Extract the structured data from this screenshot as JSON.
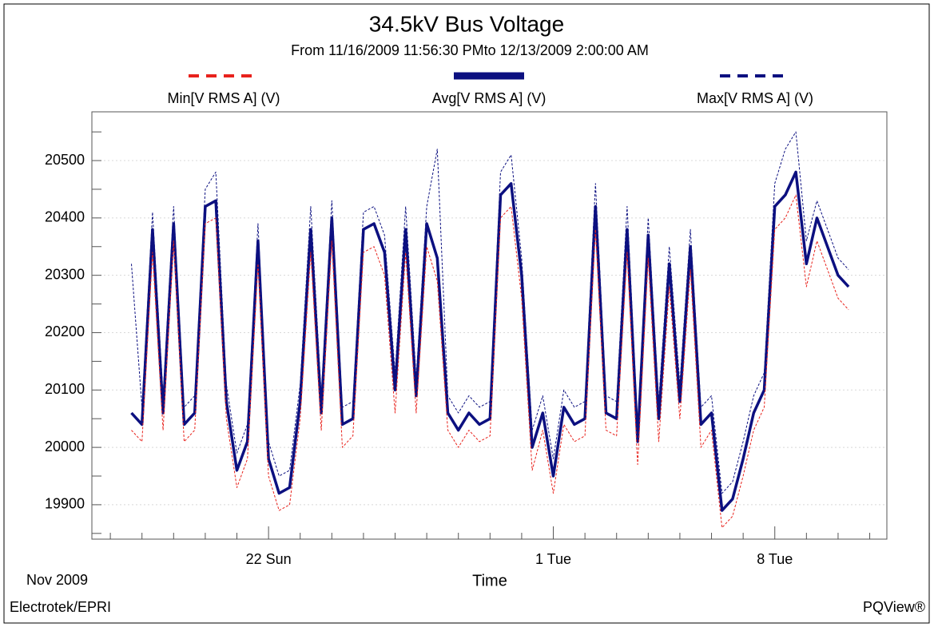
{
  "chart_data": {
    "type": "line",
    "title": "34.5kV Bus Voltage",
    "subtitle": "From 11/16/2009 11:56:30 PMto 12/13/2009 2:00:00 AM",
    "xlabel": "Time",
    "x_period": "Nov 2009",
    "footer_left": "Electrotek/EPRI",
    "footer_right": "PQView®",
    "grid": true,
    "xlim": [
      "2009-11-16T10:00",
      "2009-12-11T13:00"
    ],
    "ylim": [
      19840,
      20585
    ],
    "yticks": [
      19900,
      20000,
      20100,
      20200,
      20300,
      20400,
      20500
    ],
    "yminorticks": [
      19850,
      19950,
      20050,
      20150,
      20250,
      20350,
      20450,
      20550
    ],
    "xticks": [
      {
        "value": "2009-11-22T00:00",
        "label": "22 Sun"
      },
      {
        "value": "2009-12-01T00:00",
        "label": "1 Tue"
      },
      {
        "value": "2009-12-08T00:00",
        "label": "8 Tue"
      }
    ],
    "xminorticks": [
      "2009-11-17T00:00",
      "2009-11-18T00:00",
      "2009-11-19T00:00",
      "2009-11-20T00:00",
      "2009-11-21T00:00",
      "2009-11-23T00:00",
      "2009-11-24T00:00",
      "2009-11-25T00:00",
      "2009-11-26T00:00",
      "2009-11-27T00:00",
      "2009-11-28T00:00",
      "2009-11-29T00:00",
      "2009-11-30T00:00",
      "2009-12-02T00:00",
      "2009-12-03T00:00",
      "2009-12-04T00:00",
      "2009-12-05T00:00",
      "2009-12-06T00:00",
      "2009-12-07T00:00",
      "2009-12-09T00:00",
      "2009-12-10T00:00",
      "2009-12-11T00:00"
    ],
    "x": [
      "2009-11-17T16:00",
      "2009-11-18T00:00",
      "2009-11-18T08:00",
      "2009-11-18T16:00",
      "2009-11-19T00:00",
      "2009-11-19T08:00",
      "2009-11-19T16:00",
      "2009-11-20T00:00",
      "2009-11-20T08:00",
      "2009-11-20T16:00",
      "2009-11-21T00:00",
      "2009-11-21T08:00",
      "2009-11-21T16:00",
      "2009-11-22T00:00",
      "2009-11-22T08:00",
      "2009-11-22T16:00",
      "2009-11-23T00:00",
      "2009-11-23T08:00",
      "2009-11-23T16:00",
      "2009-11-24T00:00",
      "2009-11-24T08:00",
      "2009-11-24T16:00",
      "2009-11-25T00:00",
      "2009-11-25T08:00",
      "2009-11-25T16:00",
      "2009-11-26T00:00",
      "2009-11-26T08:00",
      "2009-11-26T16:00",
      "2009-11-27T00:00",
      "2009-11-27T08:00",
      "2009-11-27T16:00",
      "2009-11-28T00:00",
      "2009-11-28T08:00",
      "2009-11-28T16:00",
      "2009-11-29T00:00",
      "2009-11-29T08:00",
      "2009-11-29T16:00",
      "2009-11-30T00:00",
      "2009-11-30T08:00",
      "2009-11-30T16:00",
      "2009-12-01T00:00",
      "2009-12-01T08:00",
      "2009-12-01T16:00",
      "2009-12-02T00:00",
      "2009-12-02T08:00",
      "2009-12-02T16:00",
      "2009-12-03T00:00",
      "2009-12-03T08:00",
      "2009-12-03T16:00",
      "2009-12-04T00:00",
      "2009-12-04T08:00",
      "2009-12-04T16:00",
      "2009-12-05T00:00",
      "2009-12-05T08:00",
      "2009-12-05T16:00",
      "2009-12-06T00:00",
      "2009-12-06T08:00",
      "2009-12-06T16:00",
      "2009-12-07T00:00",
      "2009-12-07T08:00",
      "2009-12-07T16:00",
      "2009-12-08T00:00",
      "2009-12-08T08:00",
      "2009-12-08T16:00",
      "2009-12-09T00:00",
      "2009-12-09T08:00",
      "2009-12-09T16:00",
      "2009-12-10T00:00",
      "2009-12-10T08:00"
    ],
    "series": [
      {
        "name": "Min[V RMS A] (V)",
        "color": "#e8221c",
        "line_style": "dashed",
        "values": [
          20030,
          20010,
          20340,
          20030,
          20360,
          20010,
          20030,
          20390,
          20400,
          20050,
          19930,
          19980,
          20320,
          19950,
          19890,
          19900,
          20050,
          20340,
          20030,
          20360,
          20000,
          20020,
          20340,
          20350,
          20300,
          20060,
          20340,
          20060,
          20350,
          20290,
          20030,
          20000,
          20030,
          20010,
          20020,
          20400,
          20420,
          20260,
          19960,
          20030,
          19920,
          20040,
          20010,
          20020,
          20380,
          20030,
          20020,
          20340,
          19970,
          20330,
          20010,
          20280,
          20050,
          20310,
          20000,
          20030,
          19860,
          19880,
          19950,
          20030,
          20070,
          20380,
          20400,
          20440,
          20280,
          20360,
          20310,
          20260,
          20240
        ]
      },
      {
        "name": "Avg[V RMS A] (V)",
        "color": "#0c1080",
        "line_style": "solid",
        "values": [
          20060,
          20040,
          20380,
          20060,
          20390,
          20040,
          20060,
          20420,
          20430,
          20080,
          19960,
          20010,
          20360,
          19980,
          19920,
          19930,
          20080,
          20380,
          20060,
          20400,
          20040,
          20050,
          20380,
          20390,
          20340,
          20100,
          20380,
          20090,
          20390,
          20330,
          20060,
          20030,
          20060,
          20040,
          20050,
          20440,
          20460,
          20300,
          20000,
          20060,
          19950,
          20070,
          20040,
          20050,
          20420,
          20060,
          20050,
          20380,
          20010,
          20370,
          20050,
          20320,
          20080,
          20350,
          20040,
          20060,
          19890,
          19910,
          19980,
          20060,
          20100,
          20420,
          20440,
          20480,
          20320,
          20400,
          20350,
          20300,
          20280
        ]
      },
      {
        "name": "Max[V RMS A] (V)",
        "color": "#0c1080",
        "line_style": "dashed",
        "values": [
          20320,
          20070,
          20410,
          20090,
          20420,
          20070,
          20090,
          20450,
          20480,
          20110,
          19990,
          20040,
          20390,
          20010,
          19950,
          19960,
          20110,
          20420,
          20090,
          20430,
          20070,
          20080,
          20410,
          20420,
          20370,
          20130,
          20420,
          20120,
          20420,
          20520,
          20090,
          20060,
          20090,
          20070,
          20080,
          20480,
          20510,
          20330,
          20030,
          20090,
          19980,
          20100,
          20070,
          20080,
          20460,
          20090,
          20080,
          20420,
          20040,
          20400,
          20080,
          20350,
          20110,
          20380,
          20070,
          20090,
          19920,
          19940,
          20010,
          20090,
          20130,
          20460,
          20520,
          20550,
          20360,
          20430,
          20380,
          20330,
          20310
        ]
      }
    ]
  }
}
